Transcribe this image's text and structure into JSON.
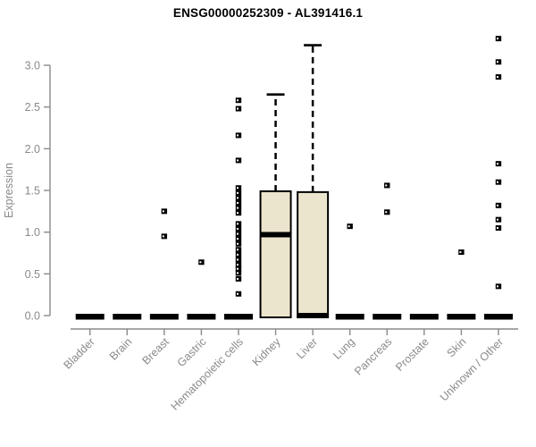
{
  "chart_data": {
    "type": "boxplot",
    "title": "ENSG00000252309 - AL391416.1",
    "xlabel": "",
    "ylabel": "Expression",
    "yticks": [
      "0.0",
      "0.5",
      "1.0",
      "1.5",
      "2.0",
      "2.5",
      "3.0"
    ],
    "ylim": [
      0,
      3.4
    ],
    "grid": false,
    "legend": null,
    "categories": [
      "Bladder",
      "Brain",
      "Breast",
      "Gastric",
      "Hematopoietic cells",
      "Kidney",
      "Liver",
      "Lung",
      "Pancreas",
      "Prostate",
      "Skin",
      "Unknown / Other"
    ],
    "series": [
      {
        "category": "Bladder",
        "q1": 0,
        "median": 0,
        "q3": 0,
        "whisker_low": 0,
        "whisker_high": 0,
        "outliers": []
      },
      {
        "category": "Brain",
        "q1": 0,
        "median": 0,
        "q3": 0,
        "whisker_low": 0,
        "whisker_high": 0,
        "outliers": []
      },
      {
        "category": "Breast",
        "q1": 0,
        "median": 0,
        "q3": 0,
        "whisker_low": 0,
        "whisker_high": 0,
        "outliers": [
          1.25,
          0.95
        ]
      },
      {
        "category": "Gastric",
        "q1": 0,
        "median": 0,
        "q3": 0,
        "whisker_low": 0,
        "whisker_high": 0,
        "outliers": [
          0.64
        ]
      },
      {
        "category": "Hematopoietic cells",
        "q1": 0,
        "median": 0,
        "q3": 0,
        "whisker_low": 0,
        "whisker_high": 0,
        "outliers": [
          2.58,
          2.48,
          2.16,
          1.86,
          1.53,
          1.47,
          1.41,
          1.35,
          1.29,
          1.23,
          1.1,
          1.04,
          0.98,
          0.92,
          0.86,
          0.79,
          0.73,
          0.67,
          0.61,
          0.56,
          0.51,
          0.44,
          0.26
        ]
      },
      {
        "category": "Kidney",
        "q1": 0,
        "median": 0.97,
        "q3": 1.49,
        "whisker_low": 0,
        "whisker_high": 2.65,
        "outliers": []
      },
      {
        "category": "Liver",
        "q1": 0,
        "median": 0,
        "q3": 1.48,
        "whisker_low": 0,
        "whisker_high": 3.24,
        "outliers": []
      },
      {
        "category": "Lung",
        "q1": 0,
        "median": 0,
        "q3": 0,
        "whisker_low": 0,
        "whisker_high": 0,
        "outliers": [
          1.07
        ]
      },
      {
        "category": "Pancreas",
        "q1": 0,
        "median": 0,
        "q3": 0,
        "whisker_low": 0,
        "whisker_high": 0,
        "outliers": [
          1.56,
          1.24
        ]
      },
      {
        "category": "Prostate",
        "q1": 0,
        "median": 0,
        "q3": 0,
        "whisker_low": 0,
        "whisker_high": 0,
        "outliers": []
      },
      {
        "category": "Skin",
        "q1": 0,
        "median": 0,
        "q3": 0,
        "whisker_low": 0,
        "whisker_high": 0,
        "outliers": [
          0.76
        ]
      },
      {
        "category": "Unknown / Other",
        "q1": 0,
        "median": 0,
        "q3": 0,
        "whisker_low": 0,
        "whisker_high": 0,
        "outliers": [
          3.32,
          3.04,
          2.86,
          1.82,
          1.6,
          1.32,
          1.15,
          1.05,
          0.35
        ]
      }
    ],
    "colors": {
      "box_fill": "#ece5cd",
      "box_stroke": "#000000",
      "axis": "#8a8a8a",
      "tick_text": "#8a8a8a",
      "title_text": "#000000",
      "outlier": "#000000",
      "background": "#ffffff"
    }
  }
}
